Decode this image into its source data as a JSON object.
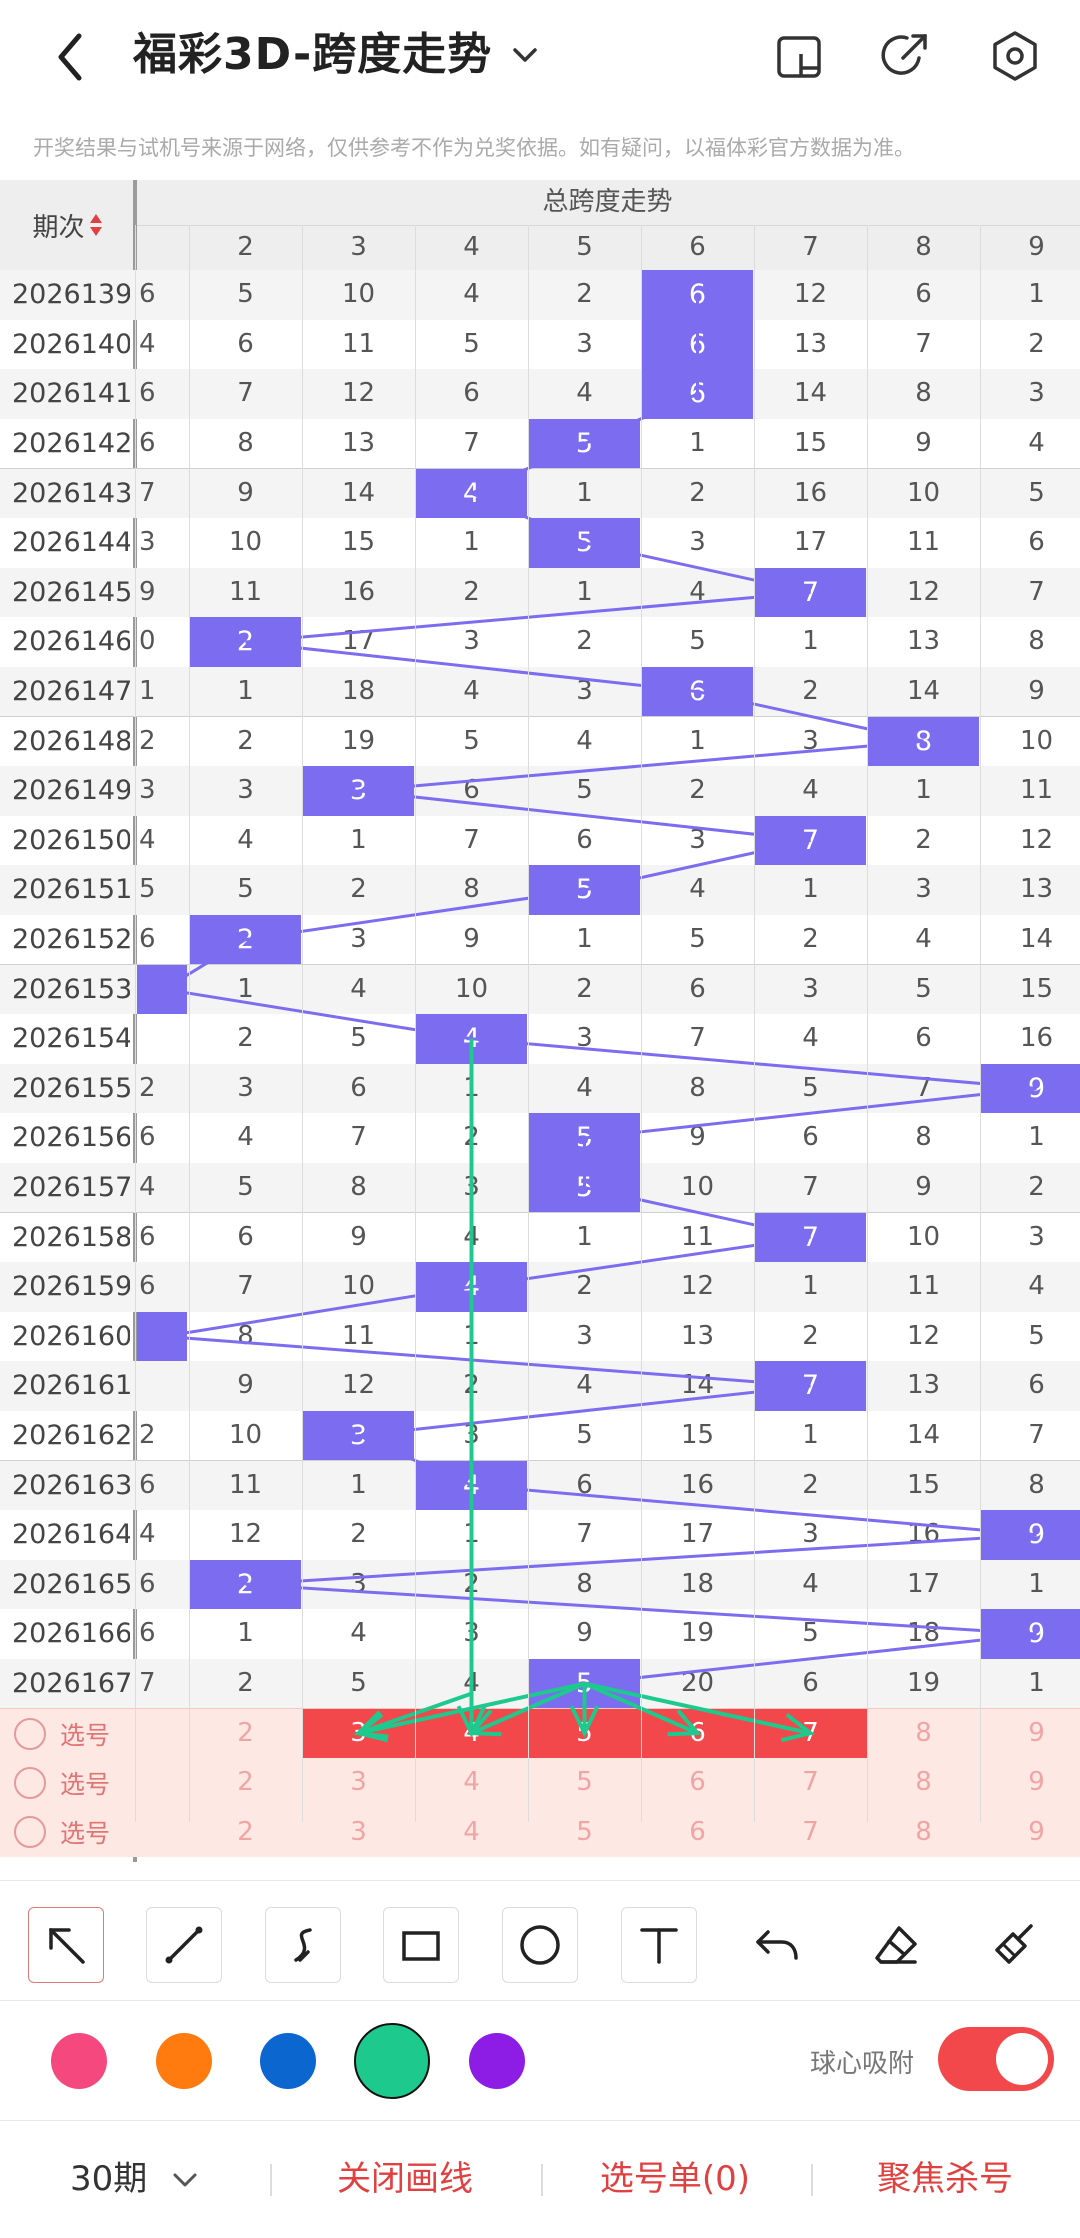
{
  "header": {
    "title": "福彩3D-跨度走势",
    "icons": [
      "back-icon",
      "chevron-down-icon",
      "layout-icon",
      "share-icon",
      "settings-icon"
    ]
  },
  "notice": "开奖结果与试机号来源于网络，仅供参考不作为兑奖依据。如有疑问，以福体彩官方数据为准。",
  "table": {
    "group_title": "总跨度走势",
    "period_header": "期次",
    "columns": [
      "2",
      "3",
      "4",
      "5",
      "6",
      "7",
      "8",
      "9"
    ],
    "rows": [
      {
        "period": "2026139",
        "partial": "6",
        "hit": 6,
        "cells": [
          "5",
          "10",
          "4",
          "2",
          "6",
          "12",
          "6",
          "1"
        ]
      },
      {
        "period": "2026140",
        "partial": "4",
        "hit": 6,
        "cells": [
          "6",
          "11",
          "5",
          "3",
          "6",
          "13",
          "7",
          "2"
        ]
      },
      {
        "period": "2026141",
        "partial": "6",
        "hit": 6,
        "cells": [
          "7",
          "12",
          "6",
          "4",
          "6",
          "14",
          "8",
          "3"
        ]
      },
      {
        "period": "2026142",
        "partial": "6",
        "hit": 5,
        "cells": [
          "8",
          "13",
          "7",
          "5",
          "1",
          "15",
          "9",
          "4"
        ]
      },
      {
        "period": "2026143",
        "partial": "7",
        "hit": 4,
        "cells": [
          "9",
          "14",
          "4",
          "1",
          "2",
          "16",
          "10",
          "5"
        ]
      },
      {
        "period": "2026144",
        "partial": "3",
        "hit": 5,
        "cells": [
          "10",
          "15",
          "1",
          "5",
          "3",
          "17",
          "11",
          "6"
        ]
      },
      {
        "period": "2026145",
        "partial": "9",
        "hit": 7,
        "cells": [
          "11",
          "16",
          "2",
          "1",
          "4",
          "7",
          "12",
          "7"
        ]
      },
      {
        "period": "2026146",
        "partial": "0",
        "hit": 2,
        "cells": [
          "2",
          "17",
          "3",
          "2",
          "5",
          "1",
          "13",
          "8"
        ]
      },
      {
        "period": "2026147",
        "partial": "1",
        "hit": 6,
        "cells": [
          "1",
          "18",
          "4",
          "3",
          "6",
          "2",
          "14",
          "9"
        ]
      },
      {
        "period": "2026148",
        "partial": "2",
        "hit": 8,
        "cells": [
          "2",
          "19",
          "5",
          "4",
          "1",
          "3",
          "8",
          "10"
        ]
      },
      {
        "period": "2026149",
        "partial": "3",
        "hit": 3,
        "cells": [
          "3",
          "3",
          "6",
          "5",
          "2",
          "4",
          "1",
          "11"
        ]
      },
      {
        "period": "2026150",
        "partial": "4",
        "hit": 7,
        "cells": [
          "4",
          "1",
          "7",
          "6",
          "3",
          "7",
          "2",
          "12"
        ]
      },
      {
        "period": "2026151",
        "partial": "5",
        "hit": 5,
        "cells": [
          "5",
          "2",
          "8",
          "5",
          "4",
          "1",
          "3",
          "13"
        ]
      },
      {
        "period": "2026152",
        "partial": "6",
        "hit": 2,
        "cells": [
          "2",
          "3",
          "9",
          "1",
          "5",
          "2",
          "4",
          "14"
        ]
      },
      {
        "period": "2026153",
        "partial": "",
        "hit": 1,
        "cells": [
          "1",
          "4",
          "10",
          "2",
          "6",
          "3",
          "5",
          "15"
        ]
      },
      {
        "period": "2026154",
        "partial": "",
        "hit": 4,
        "cells": [
          "2",
          "5",
          "4",
          "3",
          "7",
          "4",
          "6",
          "16"
        ]
      },
      {
        "period": "2026155",
        "partial": "2",
        "hit": 9,
        "cells": [
          "3",
          "6",
          "1",
          "4",
          "8",
          "5",
          "7",
          "9"
        ]
      },
      {
        "period": "2026156",
        "partial": "6",
        "hit": 5,
        "cells": [
          "4",
          "7",
          "2",
          "5",
          "9",
          "6",
          "8",
          "1"
        ]
      },
      {
        "period": "2026157",
        "partial": "4",
        "hit": 5,
        "cells": [
          "5",
          "8",
          "3",
          "5",
          "10",
          "7",
          "9",
          "2"
        ]
      },
      {
        "period": "2026158",
        "partial": "6",
        "hit": 7,
        "cells": [
          "6",
          "9",
          "4",
          "1",
          "11",
          "7",
          "10",
          "3"
        ]
      },
      {
        "period": "2026159",
        "partial": "6",
        "hit": 4,
        "cells": [
          "7",
          "10",
          "4",
          "2",
          "12",
          "1",
          "11",
          "4"
        ]
      },
      {
        "period": "2026160",
        "partial": "",
        "hit": 1,
        "cells": [
          "8",
          "11",
          "1",
          "3",
          "13",
          "2",
          "12",
          "5"
        ]
      },
      {
        "period": "2026161",
        "partial": "",
        "hit": 7,
        "cells": [
          "9",
          "12",
          "2",
          "4",
          "14",
          "7",
          "13",
          "6"
        ]
      },
      {
        "period": "2026162",
        "partial": "2",
        "hit": 3,
        "cells": [
          "10",
          "3",
          "3",
          "5",
          "15",
          "1",
          "14",
          "7"
        ]
      },
      {
        "period": "2026163",
        "partial": "6",
        "hit": 4,
        "cells": [
          "11",
          "1",
          "4",
          "6",
          "16",
          "2",
          "15",
          "8"
        ]
      },
      {
        "period": "2026164",
        "partial": "4",
        "hit": 9,
        "cells": [
          "12",
          "2",
          "1",
          "7",
          "17",
          "3",
          "16",
          "9"
        ]
      },
      {
        "period": "2026165",
        "partial": "6",
        "hit": 2,
        "cells": [
          "2",
          "3",
          "2",
          "8",
          "18",
          "4",
          "17",
          "1"
        ]
      },
      {
        "period": "2026166",
        "partial": "6",
        "hit": 9,
        "cells": [
          "1",
          "4",
          "3",
          "9",
          "19",
          "5",
          "18",
          "9"
        ]
      },
      {
        "period": "2026167",
        "partial": "7",
        "hit": 5,
        "cells": [
          "2",
          "5",
          "4",
          "5",
          "20",
          "6",
          "19",
          "1"
        ]
      }
    ],
    "pick_rows": [
      {
        "label": "选号",
        "values": [
          "2",
          "3",
          "4",
          "5",
          "6",
          "7",
          "8",
          "9"
        ],
        "selected": [
          3,
          4,
          5,
          6,
          7
        ]
      },
      {
        "label": "选号",
        "values": [
          "2",
          "3",
          "4",
          "5",
          "6",
          "7",
          "8",
          "9"
        ],
        "selected": []
      },
      {
        "label": "选号",
        "values": [
          "2",
          "3",
          "4",
          "5",
          "6",
          "7",
          "8",
          "9"
        ],
        "selected": []
      }
    ],
    "colors": {
      "hit": "#7b6cf0",
      "line": "#7b6cf0",
      "drawn": "#1ec98e",
      "pick_selected": "#f2484b"
    }
  },
  "toolbar": {
    "tools": [
      "pointer-arrow-icon",
      "line-icon",
      "curve-icon",
      "rectangle-icon",
      "circle-icon",
      "text-icon",
      "undo-icon",
      "eraser-icon",
      "clear-brush-icon"
    ],
    "colors": [
      "#f4487f",
      "#ff7a0f",
      "#0b66d0",
      "#1ec98e",
      "#8d1de5"
    ],
    "selected_color": "#1ec98e",
    "snap_label": "球心吸附",
    "snap_on": true
  },
  "bottom": {
    "period_select": "30期",
    "close_draw": "关闭画线",
    "pick_list": "选号单(0)",
    "focus_kill": "聚焦杀号"
  }
}
